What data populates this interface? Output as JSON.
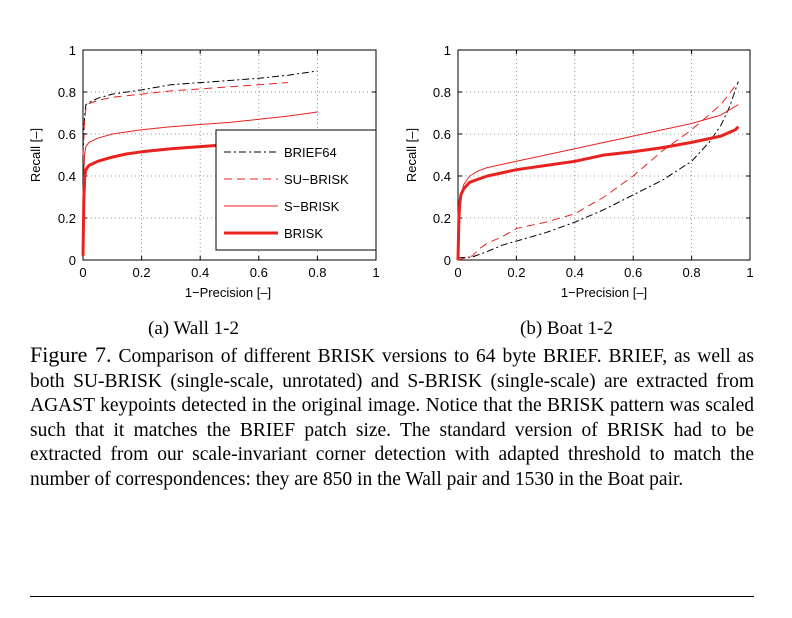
{
  "chart_data": [
    {
      "type": "line",
      "caption": "(a) Wall 1-2",
      "xlabel": "1−Precision [–]",
      "ylabel": "Recall [–]",
      "xlim": [
        0,
        1
      ],
      "ylim": [
        0,
        1
      ],
      "xticks": [
        "0",
        "0.2",
        "0.4",
        "0.6",
        "0.8",
        "1"
      ],
      "yticks": [
        "0",
        "0.2",
        "0.4",
        "0.6",
        "0.8",
        "1"
      ],
      "grid": true,
      "legend_position": "center-right",
      "series": [
        {
          "name": "BRIEF64",
          "color": "#000000",
          "dash": "dashdot",
          "width": 1,
          "x": [
            0,
            0.005,
            0.01,
            0.02,
            0.05,
            0.1,
            0.2,
            0.3,
            0.4,
            0.5,
            0.6,
            0.7,
            0.8
          ],
          "y": [
            0.5,
            0.68,
            0.74,
            0.75,
            0.77,
            0.79,
            0.81,
            0.835,
            0.845,
            0.855,
            0.865,
            0.88,
            0.9
          ]
        },
        {
          "name": "SU−BRISK",
          "color": "#e8221f",
          "dash": "dashed",
          "width": 1,
          "x": [
            0,
            0.005,
            0.01,
            0.02,
            0.05,
            0.1,
            0.2,
            0.3,
            0.4,
            0.5,
            0.6,
            0.7
          ],
          "y": [
            0.5,
            0.66,
            0.72,
            0.745,
            0.76,
            0.775,
            0.79,
            0.805,
            0.815,
            0.825,
            0.835,
            0.845
          ]
        },
        {
          "name": "S−BRISK",
          "color": "#e8221f",
          "dash": "solid",
          "width": 1,
          "x": [
            0,
            0.005,
            0.01,
            0.02,
            0.05,
            0.1,
            0.2,
            0.3,
            0.4,
            0.5,
            0.6,
            0.7,
            0.8
          ],
          "y": [
            0.3,
            0.5,
            0.54,
            0.56,
            0.58,
            0.6,
            0.62,
            0.635,
            0.645,
            0.655,
            0.67,
            0.685,
            0.705
          ]
        },
        {
          "name": "BRISK",
          "color": "#e8221f",
          "dash": "solid",
          "width": 3,
          "x": [
            0,
            0.003,
            0.006,
            0.01,
            0.02,
            0.05,
            0.1,
            0.15,
            0.2,
            0.3,
            0.4,
            0.5,
            0.55
          ],
          "y": [
            0.02,
            0.3,
            0.4,
            0.43,
            0.45,
            0.47,
            0.49,
            0.505,
            0.515,
            0.53,
            0.54,
            0.55,
            0.555
          ]
        }
      ]
    },
    {
      "type": "line",
      "caption": "(b) Boat 1-2",
      "xlabel": "1−Precision [–]",
      "ylabel": "Recall [–]",
      "xlim": [
        0,
        1
      ],
      "ylim": [
        0,
        1
      ],
      "xticks": [
        "0",
        "0.2",
        "0.4",
        "0.6",
        "0.8",
        "1"
      ],
      "yticks": [
        "0",
        "0.2",
        "0.4",
        "0.6",
        "0.8",
        "1"
      ],
      "grid": true,
      "series": [
        {
          "name": "BRIEF64",
          "color": "#000000",
          "dash": "dashdot",
          "width": 1,
          "x": [
            0,
            0.05,
            0.1,
            0.15,
            0.2,
            0.3,
            0.4,
            0.5,
            0.6,
            0.7,
            0.8,
            0.86,
            0.9,
            0.93,
            0.96
          ],
          "y": [
            0.01,
            0.015,
            0.04,
            0.07,
            0.09,
            0.13,
            0.18,
            0.24,
            0.31,
            0.38,
            0.47,
            0.56,
            0.64,
            0.73,
            0.85
          ]
        },
        {
          "name": "SU−BRISK",
          "color": "#e8221f",
          "dash": "dashed",
          "width": 1,
          "x": [
            0,
            0.05,
            0.07,
            0.1,
            0.15,
            0.2,
            0.3,
            0.4,
            0.5,
            0.6,
            0.7,
            0.8,
            0.85,
            0.9,
            0.95
          ],
          "y": [
            0,
            0.02,
            0.05,
            0.08,
            0.11,
            0.15,
            0.18,
            0.22,
            0.3,
            0.4,
            0.52,
            0.62,
            0.68,
            0.74,
            0.83
          ]
        },
        {
          "name": "S−BRISK",
          "color": "#e8221f",
          "dash": "solid",
          "width": 1,
          "x": [
            0,
            0.005,
            0.01,
            0.02,
            0.04,
            0.07,
            0.1,
            0.2,
            0.3,
            0.4,
            0.5,
            0.6,
            0.7,
            0.8,
            0.9,
            0.96
          ],
          "y": [
            0.02,
            0.2,
            0.3,
            0.36,
            0.4,
            0.425,
            0.44,
            0.47,
            0.5,
            0.53,
            0.56,
            0.59,
            0.62,
            0.65,
            0.69,
            0.74
          ]
        },
        {
          "name": "BRISK",
          "color": "#e8221f",
          "dash": "solid",
          "width": 3,
          "x": [
            0,
            0.003,
            0.006,
            0.01,
            0.02,
            0.04,
            0.07,
            0.1,
            0.2,
            0.3,
            0.4,
            0.5,
            0.6,
            0.7,
            0.8,
            0.9,
            0.95,
            0.96
          ],
          "y": [
            0,
            0.2,
            0.27,
            0.31,
            0.34,
            0.37,
            0.385,
            0.4,
            0.43,
            0.45,
            0.47,
            0.5,
            0.515,
            0.535,
            0.56,
            0.59,
            0.62,
            0.635
          ]
        }
      ]
    }
  ],
  "caption": {
    "label": "Figure 7.",
    "text": "Comparison of different BRISK versions to 64 byte BRIEF. BRIEF, as well as both SU-BRISK (single-scale, unrotated) and S-BRISK (single-scale) are extracted from AGAST keypoints detected in the original image. Notice that the BRISK pattern was scaled such that it matches the BRIEF patch size.  The standard version of BRISK had to be extracted from our scale-invariant corner detection with adapted threshold to match the number of correspondences: they are 850 in the Wall pair and 1530 in the Boat pair."
  }
}
